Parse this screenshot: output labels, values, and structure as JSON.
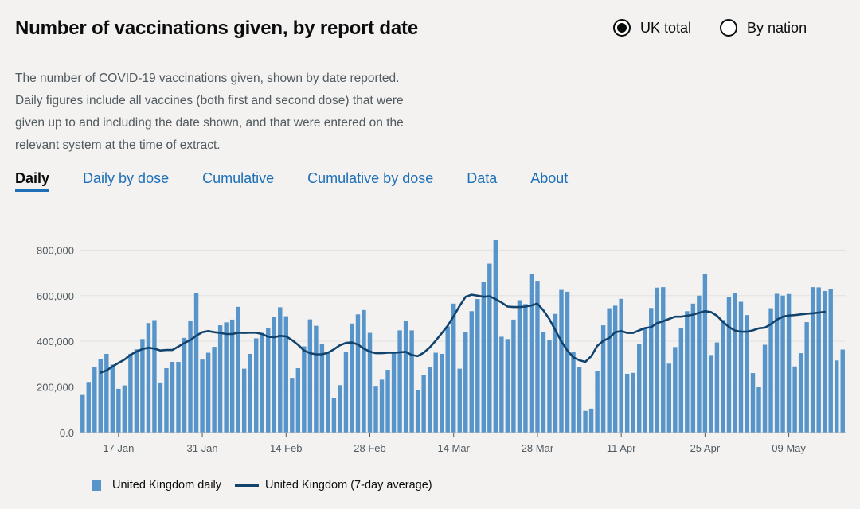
{
  "header": {
    "title": "Number of vaccinations given, by report date"
  },
  "radio": {
    "options": [
      "UK total",
      "By nation"
    ],
    "selected": 0
  },
  "description": "The number of COVID-19 vaccinations given, shown by date reported. Daily figures include all vaccines (both first and second dose) that were given up to and including the date shown, and that were entered on the relevant system at the time of extract.",
  "tabs": [
    "Daily",
    "Daily by dose",
    "Cumulative",
    "Cumulative by dose",
    "Data",
    "About"
  ],
  "active_tab": 0,
  "colors": {
    "bar": "#5694ca",
    "line": "#12436d",
    "link": "#1d70b8",
    "grid": "#e1e1e1"
  },
  "chart_data": {
    "type": "bar",
    "title": "",
    "xlabel": "",
    "ylabel": "",
    "ylim": [
      0,
      850000
    ],
    "yticks": [
      0,
      200000,
      400000,
      600000,
      800000
    ],
    "ytick_labels": [
      "0.0",
      "200,000",
      "400,000",
      "600,000",
      "800,000"
    ],
    "xtick_labels": [
      "17 Jan",
      "31 Jan",
      "14 Feb",
      "28 Feb",
      "14 Mar",
      "28 Mar",
      "11 Apr",
      "25 Apr",
      "09 May"
    ],
    "xtick_dates": [
      "2021-01-17",
      "2021-01-31",
      "2021-02-14",
      "2021-02-28",
      "2021-03-14",
      "2021-03-28",
      "2021-04-11",
      "2021-04-25",
      "2021-05-09"
    ],
    "start_date": "2021-01-11",
    "end_date": "2021-05-19",
    "grid": true,
    "legend_position": "bottom-left",
    "series": [
      {
        "name": "United Kingdom daily",
        "kind": "bar",
        "values": [
          165000,
          222000,
          288000,
          322000,
          345000,
          298000,
          192000,
          207000,
          345000,
          365000,
          410000,
          480000,
          493000,
          220000,
          282000,
          310000,
          310000,
          415000,
          490000,
          610000,
          320000,
          350000,
          376000,
          470000,
          483000,
          495000,
          551000,
          280000,
          345000,
          413000,
          437000,
          458000,
          507000,
          549000,
          510000,
          240000,
          282000,
          378000,
          496000,
          468000,
          388000,
          352000,
          150000,
          208000,
          352000,
          478000,
          518000,
          537000,
          437000,
          205000,
          232000,
          275000,
          350000,
          448000,
          488000,
          448000,
          185000,
          252000,
          289000,
          350000,
          345000,
          465000,
          565000,
          280000,
          440000,
          532000,
          585000,
          660000,
          740000,
          843000,
          420000,
          410000,
          495000,
          580000,
          563000,
          696000,
          665000,
          442000,
          404000,
          520000,
          625000,
          617000,
          355000,
          288000,
          95000,
          105000,
          270000,
          470000,
          545000,
          556000,
          586000,
          258000,
          262000,
          388000,
          455000,
          546000,
          635000,
          637000,
          302000,
          375000,
          457000,
          532000,
          565000,
          600000,
          695000,
          340000,
          395000,
          494000,
          595000,
          612000,
          573000,
          515000,
          261000,
          200000,
          385000,
          545000,
          608000,
          600000,
          607000,
          290000,
          348000,
          484000,
          637000,
          636000,
          620000,
          628000,
          316000,
          364000
        ]
      },
      {
        "name": "United Kingdom (7-day average)",
        "kind": "line",
        "start_index": 3,
        "end_index": 124,
        "values": [
          263000,
          272000,
          290000,
          305000,
          320000,
          341000,
          355000,
          366000,
          372000,
          368000,
          360000,
          362000,
          362000,
          377000,
          393000,
          405000,
          425000,
          440000,
          445000,
          440000,
          437000,
          432000,
          432000,
          438000,
          437000,
          438000,
          438000,
          432000,
          420000,
          418000,
          424000,
          422000,
          405000,
          385000,
          360000,
          348000,
          343000,
          343000,
          350000,
          365000,
          383000,
          393000,
          395000,
          386000,
          368000,
          355000,
          348000,
          348000,
          350000,
          350000,
          352000,
          354000,
          340000,
          335000,
          350000,
          373000,
          403000,
          435000,
          468000,
          510000,
          555000,
          595000,
          604000,
          600000,
          595000,
          597000,
          585000,
          570000,
          552000,
          550000,
          550000,
          552000,
          557000,
          565000,
          535000,
          497000,
          448000,
          400000,
          360000,
          330000,
          317000,
          310000,
          335000,
          380000,
          402000,
          415000,
          440000,
          445000,
          437000,
          437000,
          448000,
          458000,
          462000,
          480000,
          488000,
          498000,
          508000,
          508000,
          512000,
          517000,
          525000,
          532000,
          528000,
          512000,
          485000,
          463000,
          447000,
          442000,
          442000,
          448000,
          457000,
          460000,
          475000,
          495000,
          508000,
          513000,
          515000,
          518000,
          521000,
          523000,
          526000,
          529000
        ]
      }
    ]
  },
  "legend": {
    "bar_label": "United Kingdom daily",
    "line_label": "United Kingdom (7-day average)"
  }
}
